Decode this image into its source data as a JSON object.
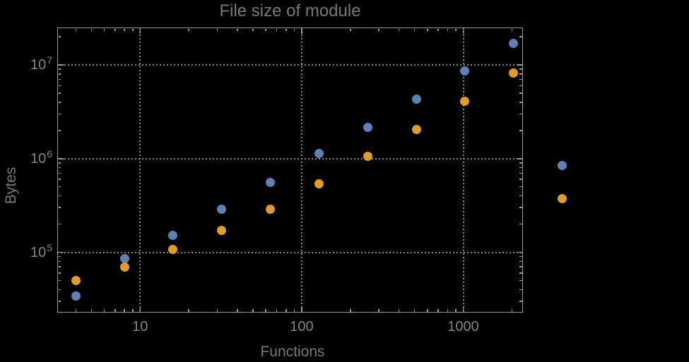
{
  "colors": {
    "background": "#000000",
    "frame": "#9b9b9b",
    "gridline": "#858585",
    "tick_label": "#828282",
    "axis_label": "#787878",
    "title_text": "#787878",
    "series_blue": "#5e81b5",
    "series_orange": "#e19c24"
  },
  "chart_data": {
    "type": "scatter",
    "title": "File size of module",
    "xlabel": "Functions",
    "ylabel": "Bytes",
    "x_scale": "log10",
    "y_scale": "log10",
    "xlim": [
      3.07,
      2340
    ],
    "ylim": [
      22700,
      25100000
    ],
    "grid": "dotted gridlines at major ticks",
    "legend": "none",
    "x_major_ticks": [
      10,
      100,
      1000
    ],
    "x_tick_labels": [
      "10",
      "100",
      "1000"
    ],
    "y_major_ticks": [
      100000,
      1000000,
      10000000
    ],
    "y_tick_labels": [
      "10^5",
      "10^6",
      "10^7"
    ],
    "x": [
      4,
      8,
      16,
      32,
      64,
      128,
      256,
      512,
      1024,
      2048,
      4096
    ],
    "series": [
      {
        "name": "blue",
        "color": "#5e81b5",
        "values": [
          34000,
          86000,
          153000,
          290000,
          562000,
          1130000,
          2140000,
          4350000,
          8700000,
          17100000,
          851000
        ]
      },
      {
        "name": "orange",
        "color": "#e19c24",
        "values": [
          50000,
          70000,
          108000,
          170000,
          290000,
          542000,
          1050000,
          2050000,
          4130000,
          8260000,
          371000
        ]
      }
    ]
  }
}
